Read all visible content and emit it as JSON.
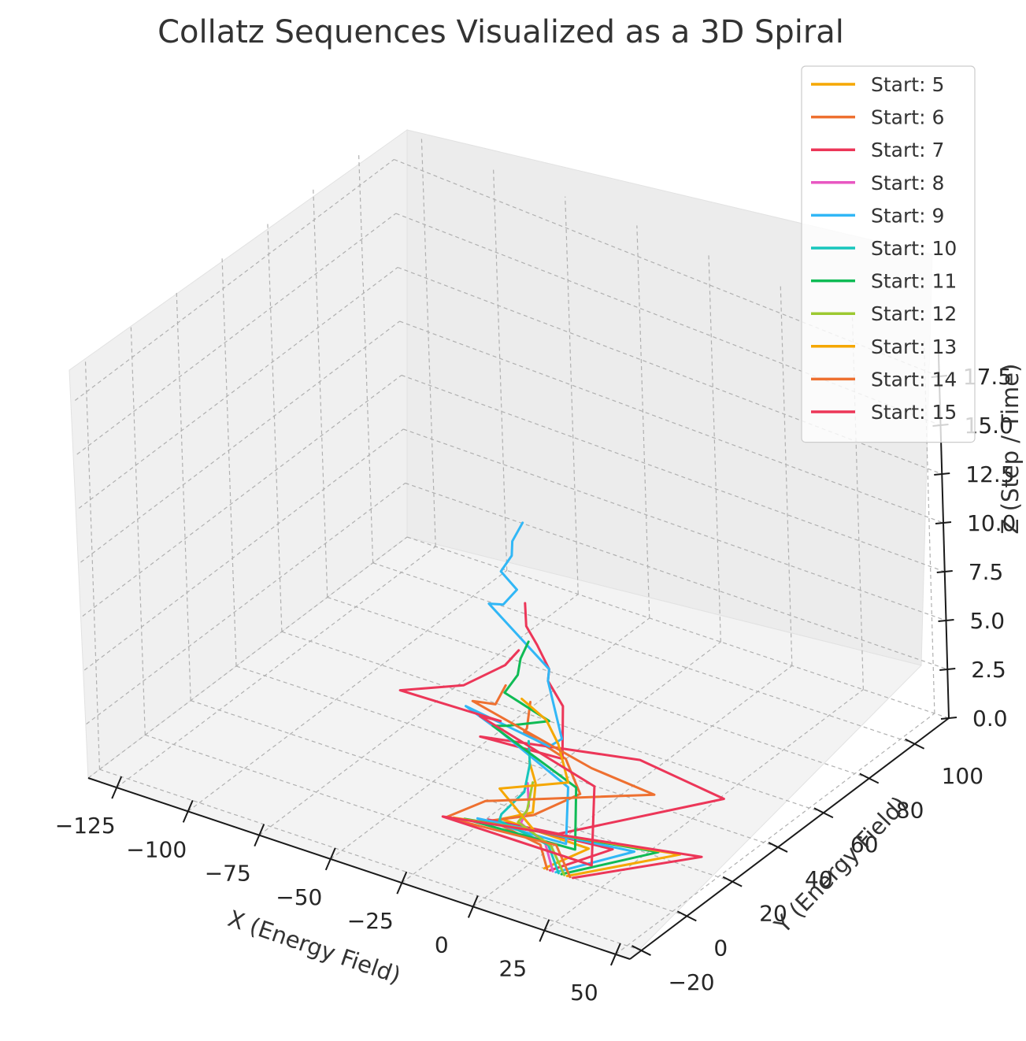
{
  "chart_data": {
    "type": "line",
    "title": "Collatz Sequences Visualized as a 3D Spiral",
    "xlabel": "X (Energy Field)",
    "ylabel": "Y (Energy Field)",
    "zlabel": "Z (Step / Time)",
    "xlim": [
      -135,
      55
    ],
    "ylim": [
      -25,
      115
    ],
    "zlim": [
      0,
      19
    ],
    "xticks": [
      "−125",
      "−100",
      "−75",
      "−50",
      "−25",
      "0",
      "25",
      "50"
    ],
    "yticks": [
      "−20",
      "0",
      "20",
      "40",
      "60",
      "80",
      "100"
    ],
    "zticks": [
      "0.0",
      "2.5",
      "5.0",
      "7.5",
      "10.0",
      "12.5",
      "15.0",
      "17.5"
    ],
    "grid": true,
    "legend_position": "top-right",
    "series": [
      {
        "name": "Start: 5",
        "color": "#f5a700",
        "points": [
          [
            5,
            0,
            0
          ],
          [
            16,
            6,
            1
          ],
          [
            -8,
            -2,
            2
          ],
          [
            4,
            -3,
            3
          ],
          [
            2,
            1,
            4
          ],
          [
            0,
            1,
            5
          ]
        ]
      },
      {
        "name": "Start: 6",
        "color": "#ee7030",
        "points": [
          [
            6,
            0,
            0
          ],
          [
            3,
            1,
            1
          ],
          [
            -10,
            -4,
            2
          ],
          [
            5,
            -4,
            3
          ],
          [
            16,
            3,
            4
          ],
          [
            8,
            7,
            5
          ],
          [
            -4,
            4,
            6
          ],
          [
            2,
            -2,
            7
          ],
          [
            1,
            1,
            8
          ]
        ]
      },
      {
        "name": "Start: 7",
        "color": "#ec3658",
        "points": [
          [
            7,
            0,
            0
          ],
          [
            22,
            9,
            1
          ],
          [
            -11,
            -4,
            2
          ],
          [
            17,
            -8,
            3
          ],
          [
            52,
            21,
            4
          ],
          [
            26,
            17,
            5
          ],
          [
            -13,
            -4,
            6
          ],
          [
            20,
            -9,
            7
          ],
          [
            10,
            4,
            8
          ],
          [
            5,
            4,
            9
          ],
          [
            8,
            1,
            10
          ],
          [
            4,
            1,
            11
          ],
          [
            2,
            -1,
            12
          ],
          [
            1,
            0,
            13
          ]
        ]
      },
      {
        "name": "Start: 8",
        "color": "#e857c2",
        "points": [
          [
            8,
            0,
            0
          ],
          [
            4,
            2,
            1
          ],
          [
            -2,
            -1,
            2
          ],
          [
            1,
            -1,
            3
          ],
          [
            0,
            0,
            4
          ]
        ]
      },
      {
        "name": "Start: 9",
        "color": "#31b7f6",
        "points": [
          [
            9,
            0,
            0
          ],
          [
            28,
            11,
            1
          ],
          [
            -14,
            -5,
            2
          ],
          [
            22,
            -11,
            3
          ],
          [
            11,
            4,
            4
          ],
          [
            -17,
            9,
            5
          ],
          [
            -26,
            6,
            6
          ],
          [
            13,
            -6,
            7
          ],
          [
            20,
            -9,
            8
          ],
          [
            5,
            4,
            9
          ],
          [
            8,
            1,
            10
          ],
          [
            -20,
            10,
            11
          ],
          [
            -10,
            4,
            12
          ],
          [
            -5,
            4,
            13
          ],
          [
            -8,
            1,
            14
          ],
          [
            -4,
            1,
            15
          ],
          [
            -2,
            -1,
            16
          ],
          [
            1,
            0,
            17
          ]
        ]
      },
      {
        "name": "Start: 10",
        "color": "#17c6bc",
        "points": [
          [
            10,
            0,
            0
          ],
          [
            5,
            2,
            1
          ],
          [
            -8,
            -3,
            2
          ],
          [
            -3,
            -8,
            3
          ],
          [
            2,
            -4,
            4
          ],
          [
            1,
            0,
            5
          ],
          [
            0,
            1,
            6
          ]
        ]
      },
      {
        "name": "Start: 11",
        "color": "#0fbb55",
        "points": [
          [
            11,
            0,
            0
          ],
          [
            34,
            14,
            1
          ],
          [
            -17,
            -7,
            2
          ],
          [
            26,
            -12,
            3
          ],
          [
            13,
            5,
            4
          ],
          [
            -20,
            10,
            5
          ],
          [
            -10,
            4,
            6
          ],
          [
            5,
            4,
            7
          ],
          [
            -8,
            1,
            8
          ],
          [
            -4,
            2,
            9
          ],
          [
            -2,
            1,
            10
          ],
          [
            1,
            1,
            11
          ]
        ]
      },
      {
        "name": "Start: 12",
        "color": "#9cc931",
        "points": [
          [
            12,
            0,
            0
          ],
          [
            6,
            2,
            1
          ],
          [
            -3,
            -1,
            2
          ],
          [
            2,
            -3,
            3
          ],
          [
            1,
            1,
            4
          ]
        ]
      },
      {
        "name": "Start: 13",
        "color": "#f5a700",
        "points": [
          [
            13,
            0,
            0
          ],
          [
            40,
            16,
            1
          ],
          [
            -20,
            -8,
            2
          ],
          [
            10,
            -10,
            3
          ],
          [
            -5,
            -6,
            4
          ],
          [
            16,
            -2,
            5
          ],
          [
            8,
            4,
            6
          ],
          [
            4,
            4,
            7
          ],
          [
            -2,
            1,
            8
          ]
        ]
      },
      {
        "name": "Start: 14",
        "color": "#ee7030",
        "points": [
          [
            14,
            0,
            0
          ],
          [
            7,
            3,
            1
          ],
          [
            -22,
            -9,
            2
          ],
          [
            -11,
            -5,
            3
          ],
          [
            34,
            13,
            4
          ],
          [
            17,
            7,
            5
          ],
          [
            -26,
            9,
            6
          ],
          [
            -13,
            3,
            7
          ],
          [
            -10,
            4,
            8
          ]
        ]
      },
      {
        "name": "Start: 15",
        "color": "#ec3658",
        "points": [
          [
            15,
            0,
            0
          ],
          [
            46,
            18,
            1
          ],
          [
            -23,
            -9,
            2
          ],
          [
            35,
            -16,
            3
          ],
          [
            17,
            8,
            4
          ],
          [
            -26,
            12,
            5
          ],
          [
            -13,
            5,
            6
          ],
          [
            -40,
            -5,
            7
          ],
          [
            -20,
            -2,
            8
          ],
          [
            -10,
            4,
            9
          ],
          [
            -5,
            4,
            10
          ]
        ]
      }
    ]
  }
}
